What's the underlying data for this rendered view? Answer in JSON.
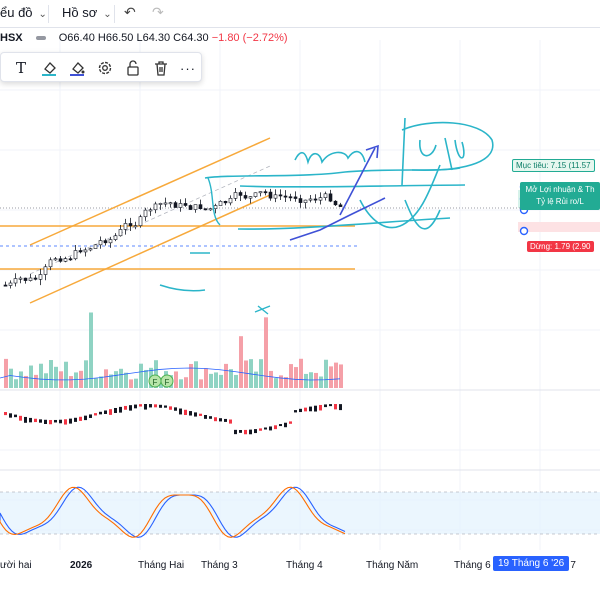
{
  "topbar": {
    "chart_menu_label": "ểu đồ",
    "profile_menu_label": "Hồ sơ",
    "undo_icon": "undo-icon",
    "redo_icon": "redo-icon"
  },
  "legend": {
    "symbol": "HSX",
    "open": "O66.40",
    "high": "H66.50",
    "low": "L64.30",
    "close": "C64.30",
    "change": "−1.80 (−2.72%)"
  },
  "drawing_toolbar": {
    "tools": [
      "text-icon",
      "fill-color-icon",
      "line-color-icon",
      "settings-icon",
      "lock-icon",
      "delete-icon",
      "more-icon"
    ],
    "text_glyph": "T",
    "more_glyph": "···"
  },
  "position": {
    "target_label": "Mục tiêu: 7.15 (11.57",
    "ratio_line1": "Mở Lợi nhuận & Th",
    "ratio_line2": "Tỷ lệ Rủi ro/L",
    "stop_label": "Dừng: 1.79 (2.90"
  },
  "volume_badges": [
    "F",
    "F"
  ],
  "time_axis": {
    "labels": [
      "ười hai",
      "2026",
      "Tháng Hai",
      "Tháng 3",
      "Tháng 4",
      "Tháng Năm",
      "Tháng 6",
      "g 7"
    ],
    "cursor_label": "19 Tháng 6 '26"
  },
  "colors": {
    "up": "#22ab94",
    "down": "#f23645",
    "vol_up": "#8fd3c3",
    "vol_down": "#f5a0a8",
    "channel": "#f7a93b",
    "drawing": "#2bb5c9",
    "arrow": "#3f51d6",
    "stoch_k": "#2962ff",
    "stoch_d": "#ff6d00",
    "band_fill": "#e3f2fd"
  }
}
